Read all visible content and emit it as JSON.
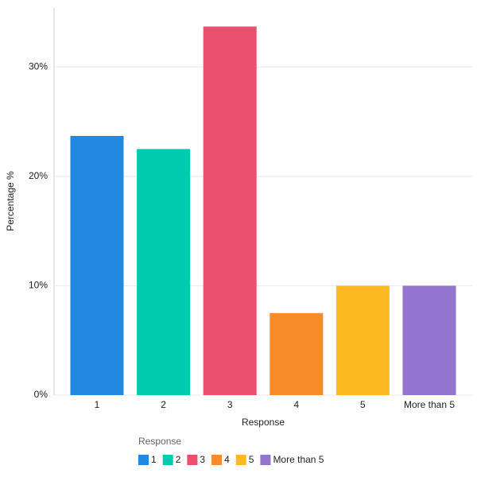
{
  "chart_data": {
    "type": "bar",
    "x_label": "Response",
    "y_label": "Percentage %",
    "legend_title": "Response",
    "categories": [
      "1",
      "2",
      "3",
      "4",
      "5",
      "More than 5"
    ],
    "values": [
      23.7,
      22.5,
      33.7,
      7.5,
      10.0,
      10.0
    ],
    "colors": [
      "#2289e3",
      "#00cbae",
      "#e8506e",
      "#f88b2a",
      "#fdb921",
      "#9375d0"
    ],
    "ylim": [
      0,
      35.4
    ],
    "yticks": [
      {
        "value": 0,
        "label": "0%"
      },
      {
        "value": 10,
        "label": "10%"
      },
      {
        "value": 20,
        "label": "20%"
      },
      {
        "value": 30,
        "label": "30%"
      }
    ],
    "grid": true
  }
}
